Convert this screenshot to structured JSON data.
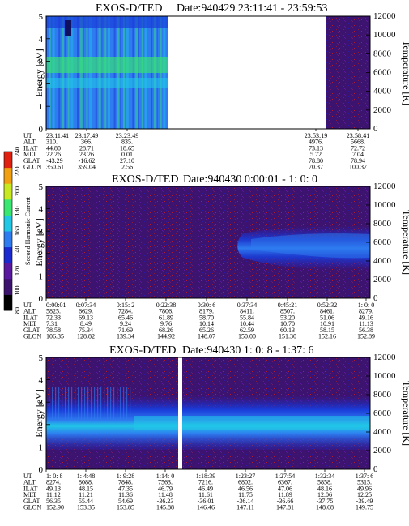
{
  "colors": {
    "background_low": "#3c1470",
    "speckle": "#8a1a3a",
    "band_blue": "#1a3cd8",
    "band_light": "#2e7cf0",
    "band_cyan": "#20c8e6",
    "band_green": "#38e870",
    "gap": "#ffffff"
  },
  "colorbar": {
    "label": "Second Harmonic Current",
    "ticks": [
      "80",
      "100",
      "120",
      "140",
      "160",
      "180",
      "200",
      "220",
      "240"
    ],
    "colors": [
      "#000000",
      "#3c1470",
      "#5a18a0",
      "#1a2ad0",
      "#2e7cf0",
      "#20c8e6",
      "#38e870",
      "#c8e820",
      "#f0a010",
      "#e02010"
    ]
  },
  "chart_data": [
    {
      "type": "heatmap",
      "title": "EXOS-D/TED",
      "date_label": "Date:940429  23:11:41 - 23:59:53",
      "ylabel": "Energy [eV]",
      "y2label": "Temperature [K]",
      "ylim": [
        0,
        5
      ],
      "y2lim": [
        0,
        12000
      ],
      "yticks": [
        "0",
        "1",
        "2",
        "3",
        "4",
        "5"
      ],
      "y2ticks": [
        "0",
        "2000",
        "4000",
        "6000",
        "8000",
        "10000",
        "12000"
      ],
      "data_gap": true,
      "ephemeris": {
        "labels": [
          "UT",
          "ALT",
          "ILAT",
          "MLT",
          "GLAT",
          "GLON"
        ],
        "columns": [
          [
            "23:11:41",
            "310.",
            "44.80",
            "22.26",
            "-43.29",
            "350.61"
          ],
          [
            "23:17:49",
            "366.",
            "28.71",
            "23.26",
            "-16.62",
            "359.04"
          ],
          [
            "23:23:49",
            "835.",
            "18.65",
            "0.01",
            "27.10",
            "2.56"
          ],
          [
            "23:53:19",
            "4976.",
            "73.13",
            "5.72",
            "78.80",
            "70.37"
          ],
          [
            "23:58:41",
            "5668.",
            "72.72",
            "7.04",
            "78.94",
            "100.37"
          ]
        ]
      }
    },
    {
      "type": "heatmap",
      "title": "EXOS-D/TED",
      "date_label": "Date:940430  0:00:01 - 1: 0: 0",
      "ylabel": "Energy [eV]",
      "y2label": "Temperature [K]",
      "ylim": [
        0,
        5
      ],
      "y2lim": [
        0,
        12000
      ],
      "yticks": [
        "0",
        "1",
        "2",
        "3",
        "4",
        "5"
      ],
      "y2ticks": [
        "0",
        "2000",
        "4000",
        "6000",
        "8000",
        "10000",
        "12000"
      ],
      "ephemeris": {
        "labels": [
          "UT",
          "ALT",
          "ILAT",
          "MLT",
          "GLAT",
          "GLON"
        ],
        "columns": [
          [
            "0:00:01",
            "5825.",
            "72.33",
            "7.31",
            "78.58",
            "106.35"
          ],
          [
            "0:07:34",
            "6629.",
            "69.13",
            "8.49",
            "75.34",
            "128.82"
          ],
          [
            "0:15: 2",
            "7284.",
            "65.46",
            "9.24",
            "71.69",
            "139.34"
          ],
          [
            "0:22:38",
            "7806.",
            "61.89",
            "9.76",
            "68.26",
            "144.92"
          ],
          [
            "0:30: 6",
            "8179.",
            "58.70",
            "10.14",
            "65.26",
            "148.07"
          ],
          [
            "0:37:34",
            "8411.",
            "55.84",
            "10.44",
            "62.59",
            "150.00"
          ],
          [
            "0:45:21",
            "8507.",
            "53.20",
            "10.70",
            "60.13",
            "151.30"
          ],
          [
            "0:52:32",
            "8461.",
            "51.06",
            "10.91",
            "58.15",
            "152.16"
          ],
          [
            "1: 0: 0",
            "8279.",
            "49.16",
            "11.13",
            "56.38",
            "152.89"
          ]
        ]
      }
    },
    {
      "type": "heatmap",
      "title": "EXOS-D/TED",
      "date_label": "Date:940430  1: 0: 8 - 1:37: 6",
      "ylabel": "Energy [eV]",
      "y2label": "Temperature [K]",
      "ylim": [
        0,
        5
      ],
      "y2lim": [
        0,
        12000
      ],
      "yticks": [
        "0",
        "1",
        "2",
        "3",
        "4",
        "5"
      ],
      "y2ticks": [
        "0",
        "2000",
        "4000",
        "6000",
        "8000",
        "10000",
        "12000"
      ],
      "data_gap": true,
      "ephemeris": {
        "labels": [
          "UT",
          "ALT",
          "ILAT",
          "MLT",
          "GLAT",
          "GLON"
        ],
        "columns": [
          [
            "1: 0: 8",
            "8274.",
            "49.13",
            "11.12",
            "56.35",
            "152.90"
          ],
          [
            "1: 4:48",
            "8088.",
            "48.15",
            "11.21",
            "55.44",
            "153.35"
          ],
          [
            "1: 9:28",
            "7848.",
            "47.35",
            "11.36",
            "54.69",
            "153.85"
          ],
          [
            "1:14: 0",
            "7563.",
            "46.79",
            "11.48",
            "-36.23",
            "145.88"
          ],
          [
            "1:18:39",
            "7216.",
            "46.49",
            "11.61",
            "-36.01",
            "146.46"
          ],
          [
            "1:23:27",
            "6802.",
            "46.56",
            "11.75",
            "-36.14",
            "147.11"
          ],
          [
            "1:27:54",
            "6367.",
            "47.06",
            "11.89",
            "-36.66",
            "147.81"
          ],
          [
            "1:32:34",
            "5858.",
            "48.16",
            "12.06",
            "-37.75",
            "148.68"
          ],
          [
            "1:37: 6",
            "5315.",
            "49.96",
            "12.25",
            "-39.49",
            "149.75"
          ]
        ]
      }
    }
  ]
}
